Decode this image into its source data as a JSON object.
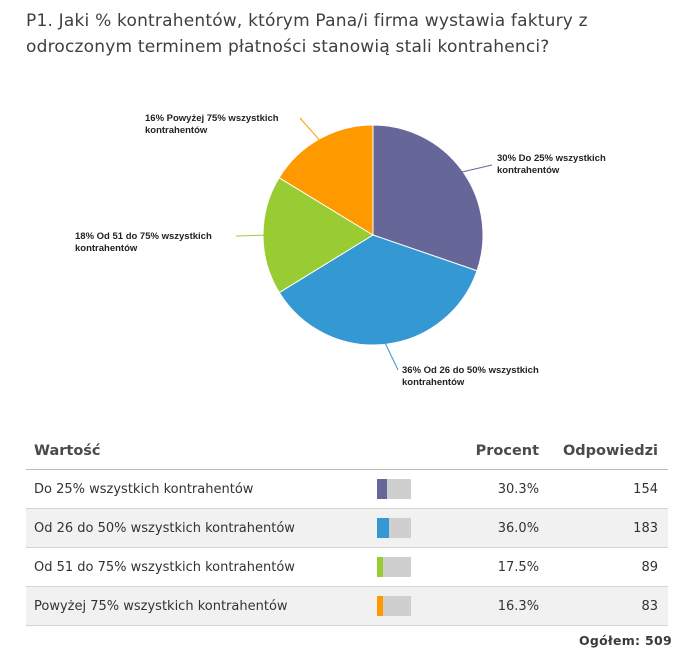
{
  "question": "P1. Jaki % kontrahentów, którym Pana/i firma wystawia faktury z odroczonym terminem płatności stanowią stali kontrahenci?",
  "chart_data": {
    "type": "pie",
    "title": "P1. Jaki % kontrahentów, którym Pana/i firma wystawia faktury z odroczonym terminem płatności stanowią stali kontrahenci?",
    "categories": [
      "Do 25% wszystkich kontrahentów",
      "Od 26 do 50% wszystkich kontrahentów",
      "Od 51 do 75% wszystkich kontrahentów",
      "Powyżej 75% wszystkich kontrahentów"
    ],
    "values": [
      30.3,
      36.0,
      17.5,
      16.3
    ],
    "colors": [
      "#676699",
      "#3499d2",
      "#99cc33",
      "#ff9900"
    ],
    "slice_labels": [
      [
        "30% Do 25% wszystkich",
        "kontrahentów"
      ],
      [
        "36% Od 26 do 50% wszystkich",
        "kontrahentów"
      ],
      [
        "18% Od 51 do 75% wszystkich",
        "kontrahentów"
      ],
      [
        "16% Powyżej 75% wszystkich",
        "kontrahentów"
      ]
    ]
  },
  "table": {
    "headers": {
      "label": "Wartość",
      "percent": "Procent",
      "count": "Odpowiedzi"
    },
    "rows": [
      {
        "label": "Do 25% wszystkich kontrahentów",
        "percent": "30.3%",
        "count": "154",
        "fraction": 0.303,
        "color": "#676699"
      },
      {
        "label": "Od 26 do 50% wszystkich kontrahentów",
        "percent": "36.0%",
        "count": "183",
        "fraction": 0.36,
        "color": "#3499d2"
      },
      {
        "label": "Od 51 do 75% wszystkich kontrahentów",
        "percent": "17.5%",
        "count": "89",
        "fraction": 0.175,
        "color": "#99cc33"
      },
      {
        "label": "Powyżej 75% wszystkich kontrahentów",
        "percent": "16.3%",
        "count": "83",
        "fraction": 0.163,
        "color": "#ff9900"
      }
    ]
  },
  "total": "Ogółem: 509"
}
